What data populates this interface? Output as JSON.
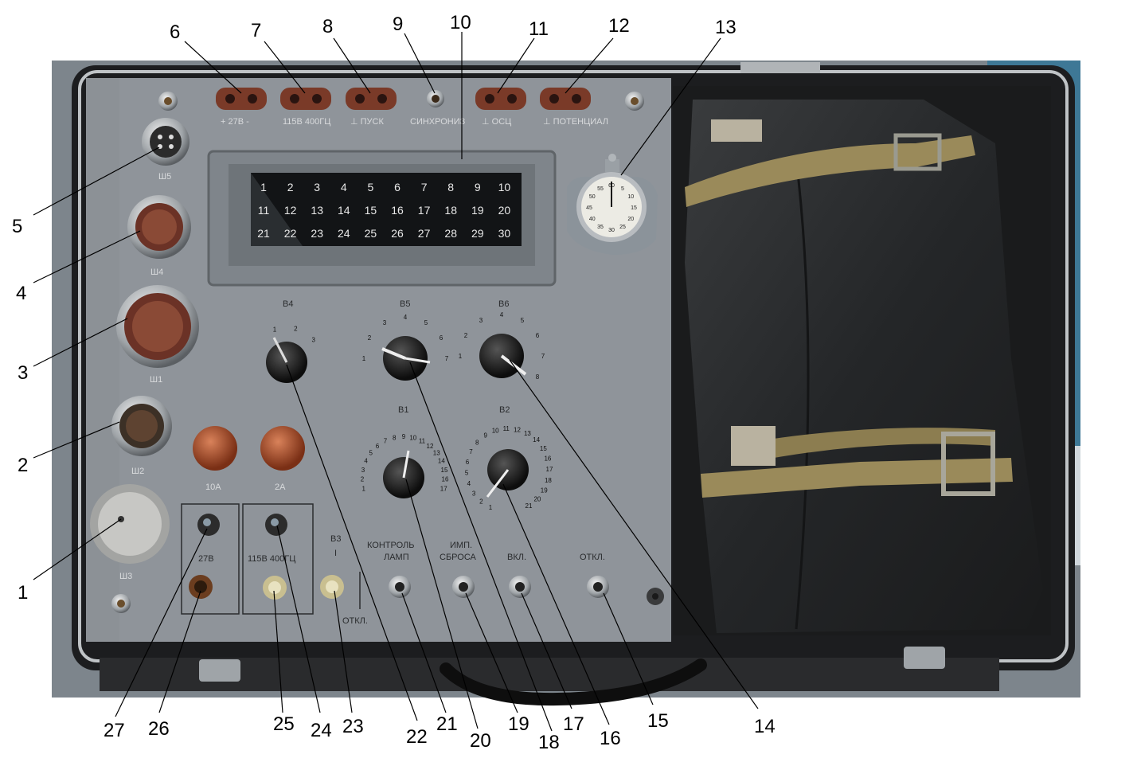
{
  "callouts": [
    "1",
    "2",
    "3",
    "4",
    "5",
    "6",
    "7",
    "8",
    "9",
    "10",
    "11",
    "12",
    "13",
    "14",
    "15",
    "16",
    "17",
    "18",
    "19",
    "20",
    "21",
    "22",
    "23",
    "24",
    "25",
    "26",
    "27"
  ],
  "top_labels": {
    "v27": "+ 27В -",
    "v115": "115В 400ГЦ",
    "pusk": "⊥  ПУСК",
    "sync": "СИНХРОНИЗ",
    "osc": "⊥  ОСЦ",
    "pot": "⊥ ПОТЕНЦИАЛ"
  },
  "connectors": {
    "sh5": "Ш5",
    "sh4": "Ш4",
    "sh1": "Ш1",
    "sh2": "Ш2",
    "sh3": "Ш3"
  },
  "fuses": {
    "f10": "10А",
    "f2": "2А"
  },
  "switch_labels": {
    "b4": "В4",
    "b5": "В5",
    "b6": "В6",
    "b1": "В1",
    "b2": "В2",
    "b3": "В3",
    "b3_on": "I",
    "b3_off": "ОТКЛ.",
    "v27": "27В",
    "v115": "115В 400ГЦ",
    "lamp1": "КОНТРОЛЬ",
    "lamp2": "ЛАМП",
    "imp1": "ИМП.",
    "imp2": "СБРОСА",
    "on": "ВКЛ.",
    "off": "ОТКЛ."
  },
  "indicator_numbers": [
    "1",
    "2",
    "3",
    "4",
    "5",
    "6",
    "7",
    "8",
    "9",
    "10",
    "11",
    "12",
    "13",
    "14",
    "15",
    "16",
    "17",
    "18",
    "19",
    "20",
    "21",
    "22",
    "23",
    "24",
    "25",
    "26",
    "27",
    "28",
    "29",
    "30"
  ],
  "b4_ticks": [
    "1",
    "2",
    "3"
  ],
  "b5_ticks": [
    "1",
    "2",
    "3",
    "4",
    "5",
    "6",
    "7"
  ],
  "b6_ticks": [
    "1",
    "2",
    "3",
    "4",
    "5",
    "6",
    "7",
    "8"
  ],
  "b1_ticks": [
    "1",
    "2",
    "3",
    "4",
    "5",
    "6",
    "7",
    "8",
    "9",
    "10",
    "11",
    "12",
    "13",
    "14",
    "15",
    "16",
    "17"
  ],
  "b2_ticks": [
    "1",
    "2",
    "3",
    "4",
    "5",
    "6",
    "7",
    "8",
    "9",
    "10",
    "11",
    "12",
    "13",
    "14",
    "15",
    "16",
    "17",
    "18",
    "19",
    "20",
    "21"
  ],
  "stopwatch_ticks": [
    "60",
    "5",
    "10",
    "15",
    "20",
    "25",
    "30",
    "35",
    "40",
    "45",
    "50",
    "55"
  ],
  "colors": {
    "panel": "#8c9196",
    "case": "#1c1d1f",
    "bag": "#2b2d2f",
    "strap": "#9a8a5a",
    "connector": "#7a3a28"
  }
}
